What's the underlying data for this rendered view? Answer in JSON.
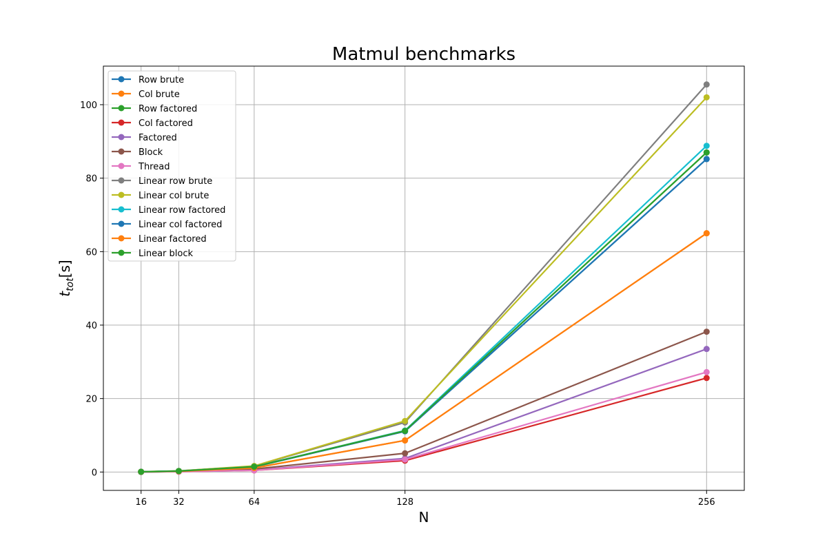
{
  "chart_data": {
    "type": "line",
    "title": "Matmul benchmarks",
    "xlabel": "N",
    "ylabel": {
      "main": "t",
      "sub": "tot",
      "tail": "[s]"
    },
    "x": [
      16,
      32,
      64,
      128,
      256
    ],
    "xlim": [
      0,
      272
    ],
    "ylim": [
      -5,
      110.5
    ],
    "xticks": [
      16,
      32,
      64,
      128,
      256
    ],
    "yticks": [
      0,
      20,
      40,
      60,
      80,
      100
    ],
    "grid": true,
    "legend_position": "top-left",
    "series": [
      {
        "name": "Row brute",
        "color": "#1f77b4",
        "values": [
          0.06,
          0.25,
          1.4,
          11.1,
          85.2
        ]
      },
      {
        "name": "Col brute",
        "color": "#ff7f0e",
        "values": [
          0.05,
          0.2,
          1.1,
          8.6,
          65.0
        ]
      },
      {
        "name": "Row factored",
        "color": "#2ca02c",
        "values": [
          0.06,
          0.26,
          1.45,
          11.2,
          87.0
        ]
      },
      {
        "name": "Col factored",
        "color": "#d62728",
        "values": [
          0.02,
          0.1,
          0.45,
          3.1,
          25.6
        ]
      },
      {
        "name": "Factored",
        "color": "#9467bd",
        "values": [
          0.02,
          0.12,
          0.55,
          3.7,
          33.5
        ]
      },
      {
        "name": "Block",
        "color": "#8c564b",
        "values": [
          0.03,
          0.15,
          0.8,
          5.1,
          38.2
        ]
      },
      {
        "name": "Thread",
        "color": "#e377c2",
        "values": [
          0.02,
          0.1,
          0.45,
          3.4,
          27.2
        ]
      },
      {
        "name": "Linear row brute",
        "color": "#7f7f7f",
        "values": [
          0.08,
          0.3,
          1.6,
          13.5,
          105.5
        ]
      },
      {
        "name": "Linear col brute",
        "color": "#bcbd22",
        "values": [
          0.08,
          0.3,
          1.65,
          13.9,
          102.0
        ]
      },
      {
        "name": "Linear row factored",
        "color": "#17becf",
        "values": [
          0.06,
          0.26,
          1.45,
          11.3,
          88.8
        ]
      },
      {
        "name": "Linear col factored",
        "color": "#1f77b4",
        "values": [
          0.06,
          0.25,
          1.4,
          11.1,
          85.2
        ]
      },
      {
        "name": "Linear factored",
        "color": "#ff7f0e",
        "values": [
          0.05,
          0.2,
          1.1,
          8.6,
          65.0
        ]
      },
      {
        "name": "Linear block",
        "color": "#2ca02c",
        "values": [
          0.06,
          0.26,
          1.45,
          11.2,
          87.0
        ]
      }
    ]
  }
}
